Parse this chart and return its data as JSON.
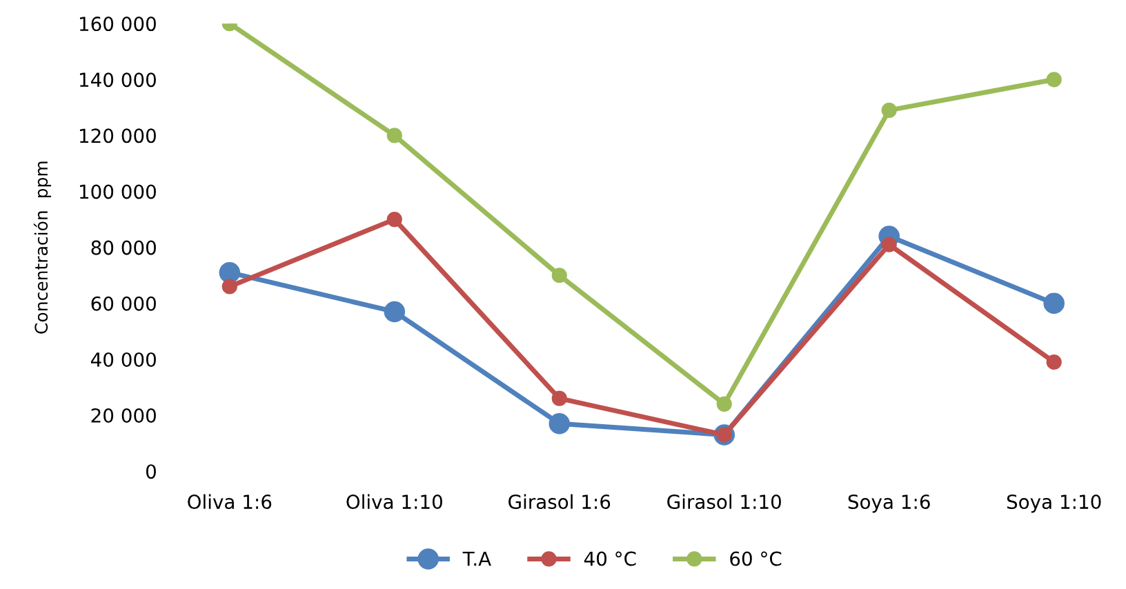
{
  "chart_data": {
    "type": "line",
    "ylabel": "Concentración  ppm",
    "categories": [
      "Oliva 1:6",
      "Oliva 1:10",
      "Girasol 1:6",
      "Girasol 1:10",
      "Soya 1:6",
      "Soya 1:10"
    ],
    "series": [
      {
        "name": "T.A",
        "color": "#4f81bd",
        "values": [
          71000,
          57000,
          17000,
          13000,
          84000,
          60000
        ]
      },
      {
        "name": "40 °C",
        "color": "#c0504d",
        "values": [
          66000,
          90000,
          26000,
          13000,
          81000,
          39000
        ]
      },
      {
        "name": "60 °C",
        "color": "#9bbb59",
        "values": [
          160000,
          120000,
          70000,
          24000,
          129000,
          140000
        ]
      }
    ],
    "ylim": [
      0,
      160000
    ],
    "yticks": [
      0,
      {
        "value": 20000,
        "label": "20 000"
      },
      {
        "value": 40000,
        "label": "40 000"
      },
      {
        "value": 60000,
        "label": "60 000"
      },
      {
        "value": 80000,
        "label": "80 000"
      },
      {
        "value": 100000,
        "label": "100 000"
      },
      {
        "value": 120000,
        "label": "120 000"
      },
      {
        "value": 140000,
        "label": "140 000"
      },
      {
        "value": 160000,
        "label": "160 000"
      }
    ],
    "grid": false,
    "legend": "bottom",
    "marker": "circle",
    "line_style": "solid"
  }
}
